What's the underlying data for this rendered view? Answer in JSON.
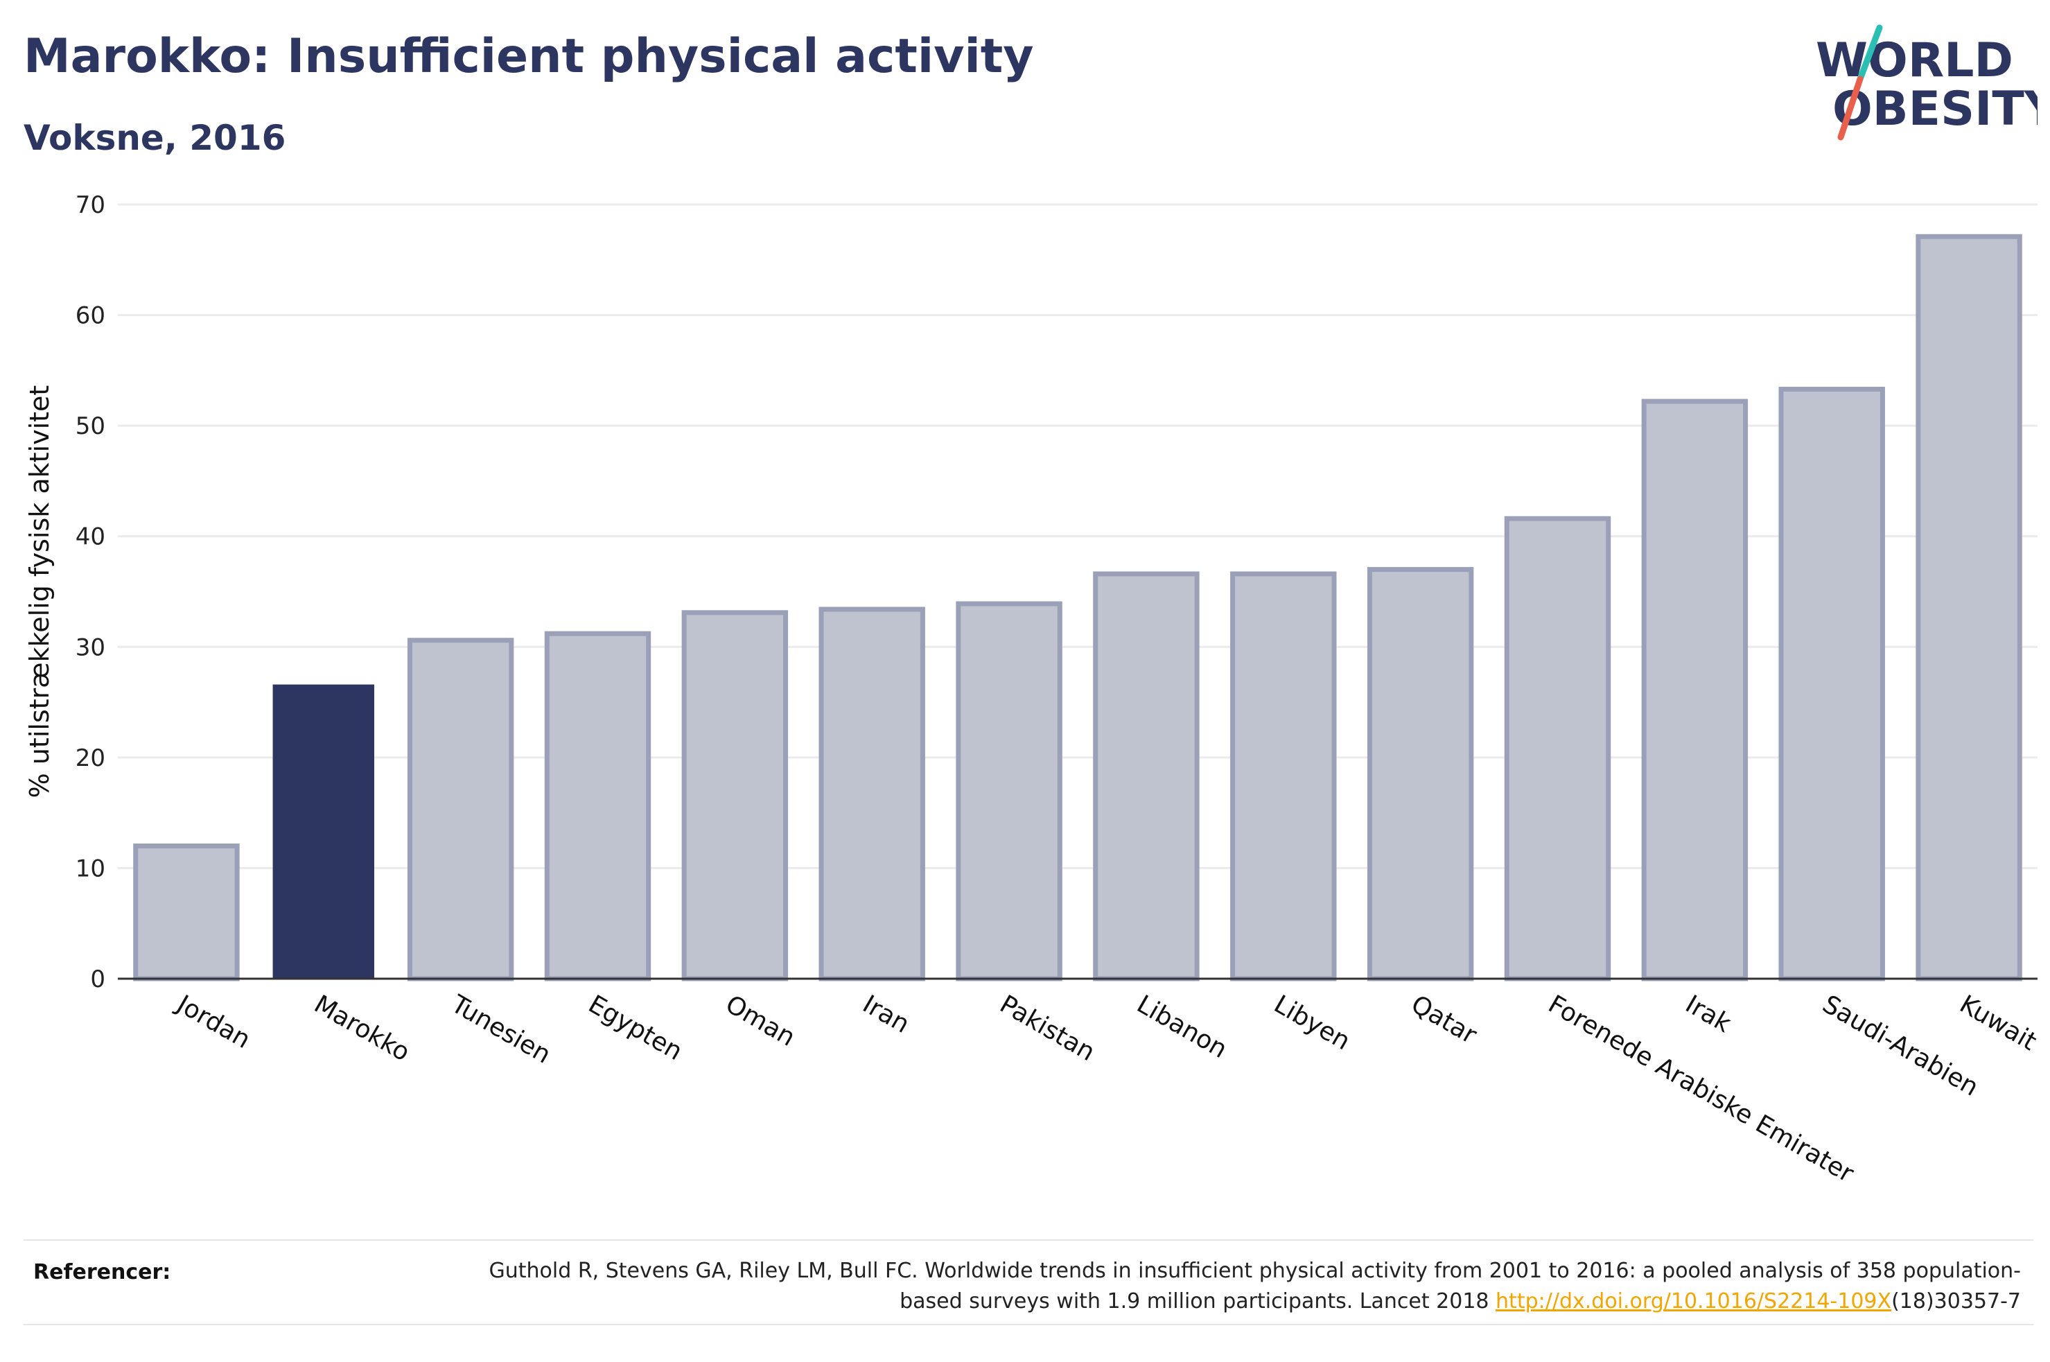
{
  "title": "Marokko: Insufficient physical activity",
  "subtitle": "Voksne, 2016",
  "logo": {
    "line1": "WORLD",
    "line2": "OBESITY"
  },
  "colors": {
    "highlight": "#2d3561",
    "bar": "#bfc3d0",
    "bar_border": "#9aa0b7",
    "grid": "#ebebeb",
    "axis": "#333333",
    "accent_teal": "#2bbfb3",
    "accent_red": "#e8604c"
  },
  "chart_data": {
    "type": "bar",
    "categories": [
      "Jordan",
      "Marokko",
      "Tunesien",
      "Egypten",
      "Oman",
      "Iran",
      "Pakistan",
      "Libanon",
      "Libyen",
      "Qatar",
      "Forenede Arabiske Emirater",
      "Irak",
      "Saudi-Arabien",
      "Kuwait"
    ],
    "values": [
      12.0,
      26.6,
      30.6,
      31.2,
      33.1,
      33.4,
      33.9,
      36.6,
      36.6,
      37.0,
      41.6,
      52.2,
      53.3,
      67.1
    ],
    "highlight": "Marokko",
    "ylabel": "% utilstrækkelig fysisk aktivitet",
    "ylim": [
      0,
      70
    ],
    "yticks": [
      0,
      10,
      20,
      30,
      40,
      50,
      60,
      70
    ],
    "grid": true
  },
  "references": {
    "label": "Referencer:",
    "text_before": "Guthold R, Stevens GA, Riley LM, Bull FC. Worldwide trends in insufficient physical activity from 2001 to 2016: a pooled analysis of 358 population-based surveys with 1.9 million participants. Lancet 2018 ",
    "link_text": "http://dx.doi.org/10.1016/S2214-109X",
    "text_after": "(18)30357-7"
  }
}
